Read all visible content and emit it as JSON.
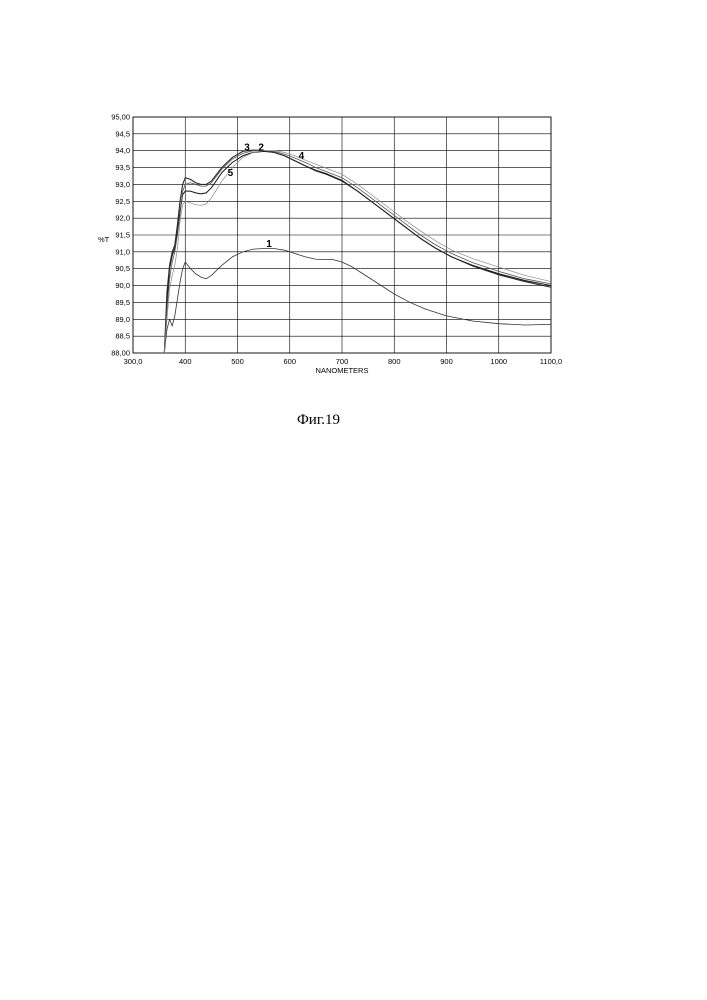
{
  "caption": "Фиг.19",
  "chart_data": {
    "type": "line",
    "xlabel": "NANOMETERS",
    "ylabel": "%T",
    "xlim": [
      300,
      1100
    ],
    "ylim": [
      88,
      95
    ],
    "x_ticks": [
      300,
      400,
      500,
      600,
      700,
      800,
      900,
      1000,
      1100
    ],
    "x_tick_labels": [
      "300,0",
      "400",
      "500",
      "600",
      "700",
      "800",
      "900",
      "1000",
      "1100,0"
    ],
    "y_ticks": [
      88,
      88.5,
      89,
      89.5,
      90,
      90.5,
      91,
      91.5,
      92,
      92.5,
      93,
      93.5,
      94,
      94.5,
      95
    ],
    "y_tick_labels": [
      "88,00",
      "88,5",
      "89,0",
      "89,5",
      "90,0",
      "90,5",
      "91,0",
      "91,5",
      "92,0",
      "92,5",
      "93,0",
      "93,5",
      "94,0",
      "94,5",
      "95,00"
    ],
    "grid": true,
    "series": [
      {
        "name": "1",
        "label_at": [
          555,
          91.15
        ],
        "points": [
          [
            360,
            88.0
          ],
          [
            365,
            88.7
          ],
          [
            370,
            89.0
          ],
          [
            375,
            88.8
          ],
          [
            380,
            89.1
          ],
          [
            385,
            89.6
          ],
          [
            390,
            90.1
          ],
          [
            395,
            90.5
          ],
          [
            400,
            90.7
          ],
          [
            410,
            90.5
          ],
          [
            420,
            90.35
          ],
          [
            430,
            90.25
          ],
          [
            440,
            90.2
          ],
          [
            450,
            90.3
          ],
          [
            470,
            90.6
          ],
          [
            490,
            90.85
          ],
          [
            510,
            91.0
          ],
          [
            530,
            91.08
          ],
          [
            550,
            91.1
          ],
          [
            570,
            91.1
          ],
          [
            590,
            91.05
          ],
          [
            610,
            90.95
          ],
          [
            630,
            90.85
          ],
          [
            650,
            90.78
          ],
          [
            670,
            90.77
          ],
          [
            680,
            90.78
          ],
          [
            700,
            90.7
          ],
          [
            720,
            90.55
          ],
          [
            740,
            90.35
          ],
          [
            760,
            90.15
          ],
          [
            780,
            89.95
          ],
          [
            800,
            89.75
          ],
          [
            830,
            89.5
          ],
          [
            860,
            89.3
          ],
          [
            900,
            89.1
          ],
          [
            950,
            88.95
          ],
          [
            1000,
            88.87
          ],
          [
            1050,
            88.83
          ],
          [
            1100,
            88.85
          ]
        ]
      },
      {
        "name": "2",
        "label_at": [
          540,
          94.0
        ],
        "points": [
          [
            360,
            88.0
          ],
          [
            365,
            89.5
          ],
          [
            370,
            90.5
          ],
          [
            375,
            90.9
          ],
          [
            380,
            91.1
          ],
          [
            385,
            91.6
          ],
          [
            390,
            92.2
          ],
          [
            395,
            92.7
          ],
          [
            400,
            92.8
          ],
          [
            410,
            92.8
          ],
          [
            420,
            92.75
          ],
          [
            430,
            92.72
          ],
          [
            440,
            92.75
          ],
          [
            450,
            92.9
          ],
          [
            470,
            93.35
          ],
          [
            490,
            93.65
          ],
          [
            510,
            93.85
          ],
          [
            530,
            93.95
          ],
          [
            550,
            93.98
          ],
          [
            570,
            93.95
          ],
          [
            590,
            93.85
          ],
          [
            610,
            93.7
          ],
          [
            630,
            93.55
          ],
          [
            650,
            93.4
          ],
          [
            670,
            93.3
          ],
          [
            700,
            93.1
          ],
          [
            730,
            92.8
          ],
          [
            760,
            92.45
          ],
          [
            790,
            92.1
          ],
          [
            820,
            91.75
          ],
          [
            850,
            91.4
          ],
          [
            880,
            91.1
          ],
          [
            910,
            90.85
          ],
          [
            950,
            90.6
          ],
          [
            1000,
            90.35
          ],
          [
            1050,
            90.15
          ],
          [
            1100,
            90.0
          ]
        ]
      },
      {
        "name": "3",
        "label_at": [
          513,
          94.0
        ],
        "points": [
          [
            360,
            88.0
          ],
          [
            365,
            89.8
          ],
          [
            370,
            90.6
          ],
          [
            375,
            91.0
          ],
          [
            380,
            91.2
          ],
          [
            385,
            91.8
          ],
          [
            390,
            92.5
          ],
          [
            395,
            93.0
          ],
          [
            400,
            93.2
          ],
          [
            410,
            93.15
          ],
          [
            420,
            93.05
          ],
          [
            430,
            93.0
          ],
          [
            440,
            93.0
          ],
          [
            450,
            93.1
          ],
          [
            470,
            93.5
          ],
          [
            490,
            93.8
          ],
          [
            510,
            93.98
          ],
          [
            530,
            94.02
          ],
          [
            550,
            94.0
          ],
          [
            570,
            93.95
          ],
          [
            590,
            93.85
          ],
          [
            610,
            93.7
          ],
          [
            630,
            93.55
          ],
          [
            650,
            93.42
          ],
          [
            670,
            93.32
          ],
          [
            700,
            93.12
          ],
          [
            730,
            92.8
          ],
          [
            760,
            92.45
          ],
          [
            790,
            92.1
          ],
          [
            820,
            91.75
          ],
          [
            850,
            91.4
          ],
          [
            880,
            91.1
          ],
          [
            910,
            90.85
          ],
          [
            950,
            90.58
          ],
          [
            1000,
            90.32
          ],
          [
            1050,
            90.12
          ],
          [
            1100,
            89.95
          ]
        ]
      },
      {
        "name": "4",
        "label_at": [
          617,
          93.75
        ],
        "points": [
          [
            360,
            88.0
          ],
          [
            365,
            89.3
          ],
          [
            370,
            90.2
          ],
          [
            375,
            90.7
          ],
          [
            380,
            91.0
          ],
          [
            385,
            91.5
          ],
          [
            390,
            92.1
          ],
          [
            395,
            92.8
          ],
          [
            400,
            93.0
          ],
          [
            410,
            93.05
          ],
          [
            420,
            93.0
          ],
          [
            430,
            92.95
          ],
          [
            440,
            92.95
          ],
          [
            450,
            93.05
          ],
          [
            470,
            93.45
          ],
          [
            490,
            93.75
          ],
          [
            510,
            93.92
          ],
          [
            530,
            94.0
          ],
          [
            550,
            94.0
          ],
          [
            570,
            93.98
          ],
          [
            590,
            93.9
          ],
          [
            610,
            93.78
          ],
          [
            630,
            93.65
          ],
          [
            650,
            93.5
          ],
          [
            670,
            93.38
          ],
          [
            700,
            93.2
          ],
          [
            730,
            92.9
          ],
          [
            760,
            92.55
          ],
          [
            790,
            92.2
          ],
          [
            820,
            91.85
          ],
          [
            850,
            91.5
          ],
          [
            880,
            91.2
          ],
          [
            910,
            90.95
          ],
          [
            950,
            90.68
          ],
          [
            1000,
            90.42
          ],
          [
            1050,
            90.2
          ],
          [
            1100,
            90.05
          ]
        ]
      },
      {
        "name": "5",
        "label_at": [
          481,
          93.25
        ],
        "points": [
          [
            360,
            88.0
          ],
          [
            365,
            89.0
          ],
          [
            370,
            89.9
          ],
          [
            375,
            90.3
          ],
          [
            380,
            90.6
          ],
          [
            385,
            91.1
          ],
          [
            390,
            91.9
          ],
          [
            395,
            92.4
          ],
          [
            400,
            92.5
          ],
          [
            410,
            92.45
          ],
          [
            420,
            92.4
          ],
          [
            430,
            92.38
          ],
          [
            440,
            92.42
          ],
          [
            450,
            92.6
          ],
          [
            470,
            93.1
          ],
          [
            490,
            93.5
          ],
          [
            510,
            93.8
          ],
          [
            530,
            93.95
          ],
          [
            550,
            94.0
          ],
          [
            570,
            94.0
          ],
          [
            590,
            93.95
          ],
          [
            610,
            93.85
          ],
          [
            630,
            93.72
          ],
          [
            650,
            93.6
          ],
          [
            670,
            93.48
          ],
          [
            700,
            93.3
          ],
          [
            730,
            93.0
          ],
          [
            760,
            92.65
          ],
          [
            790,
            92.3
          ],
          [
            820,
            91.95
          ],
          [
            850,
            91.62
          ],
          [
            880,
            91.32
          ],
          [
            910,
            91.05
          ],
          [
            950,
            90.8
          ],
          [
            1000,
            90.55
          ],
          [
            1050,
            90.3
          ],
          [
            1100,
            90.12
          ]
        ]
      }
    ]
  }
}
